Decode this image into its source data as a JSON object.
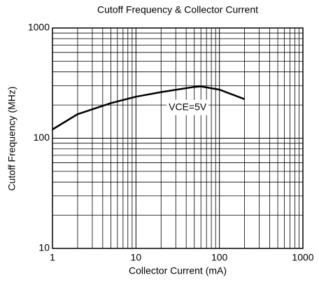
{
  "chart_data": {
    "type": "line",
    "title": "Cutoff Frequency  & Collector Current",
    "x_label": "Collector Current (mA)",
    "y_label": "Cutoff  Frequency (MHz)",
    "x": [
      1,
      2,
      5,
      10,
      20,
      50,
      60,
      100,
      200
    ],
    "series": [
      {
        "name": "VCE=5V",
        "color": "#000000",
        "values": [
          120,
          165,
          208,
          238,
          262,
          292,
          295,
          276,
          226
        ]
      }
    ],
    "annotations": [
      {
        "text": "VCE=5V",
        "x": 40,
        "y": 190
      }
    ],
    "xlim": [
      1,
      1000
    ],
    "ylim": [
      10,
      1000
    ],
    "xticks": [
      1,
      10,
      100,
      1000
    ],
    "yticks": [
      10,
      100,
      1000
    ],
    "xscale": "log",
    "yscale": "log",
    "grid": true,
    "minor_grid": true
  }
}
